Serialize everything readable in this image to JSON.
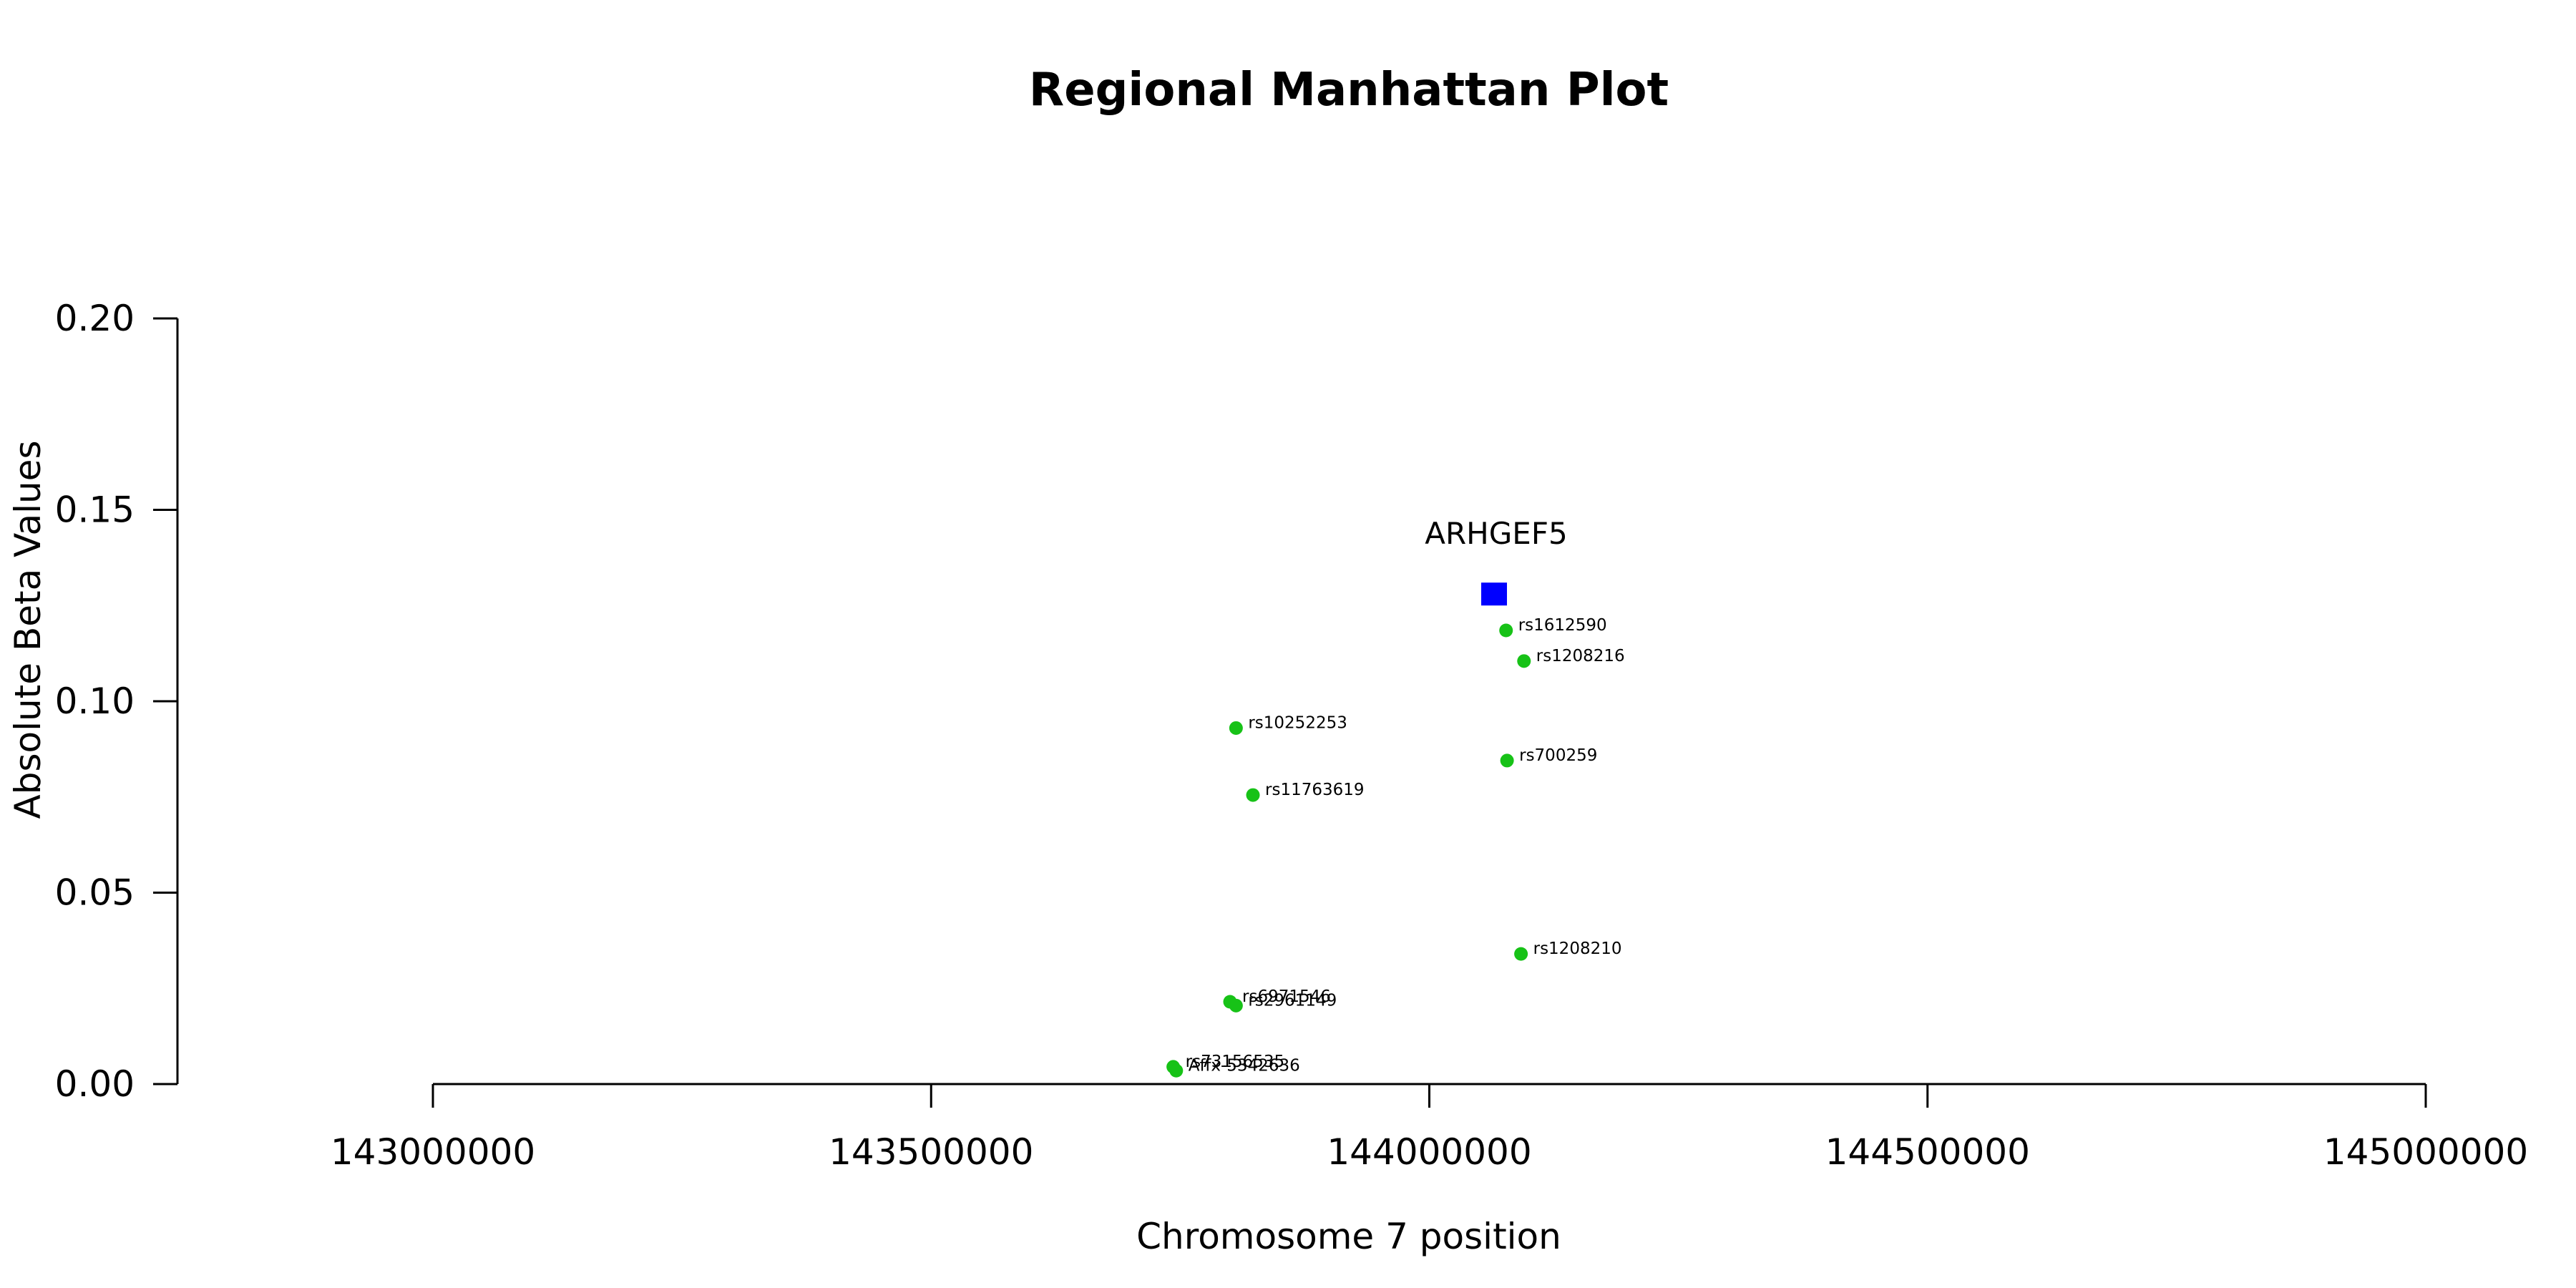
{
  "chart_data": {
    "type": "scatter",
    "title": "Regional Manhattan Plot",
    "xlabel": "Chromosome 7 position",
    "ylabel": "Absolute Beta Values",
    "xlim": [
      143000000,
      145000000
    ],
    "ylim": [
      0,
      0.2
    ],
    "x_ticks": [
      "143000000",
      "143500000",
      "144000000",
      "144500000",
      "145000000"
    ],
    "y_ticks": [
      "0.00",
      "0.05",
      "0.10",
      "0.15",
      "0.20"
    ],
    "gene": {
      "name": "ARHGEF5",
      "x": 144065000,
      "y": 0.128,
      "color": "#0000ff",
      "marker": "square"
    },
    "series": [
      {
        "marker": "circle",
        "color": "#17c217",
        "points": [
          {
            "label": "rs1612590",
            "x": 144077000,
            "y": 0.1185
          },
          {
            "label": "rs1208216",
            "x": 144095000,
            "y": 0.1105
          },
          {
            "label": "rs10252253",
            "x": 143806000,
            "y": 0.093
          },
          {
            "label": "rs700259",
            "x": 144078000,
            "y": 0.0845
          },
          {
            "label": "rs11763619",
            "x": 143823000,
            "y": 0.0755
          },
          {
            "label": "rs1208210",
            "x": 144092000,
            "y": 0.034
          },
          {
            "label": "rs6971546",
            "x": 143800000,
            "y": 0.0215
          },
          {
            "label": "rs2961149",
            "x": 143806000,
            "y": 0.0205
          },
          {
            "label": "rs73156535",
            "x": 143743000,
            "y": 0.0045
          },
          {
            "label": "Affx-5342636",
            "x": 143746000,
            "y": 0.0035
          }
        ]
      }
    ]
  }
}
